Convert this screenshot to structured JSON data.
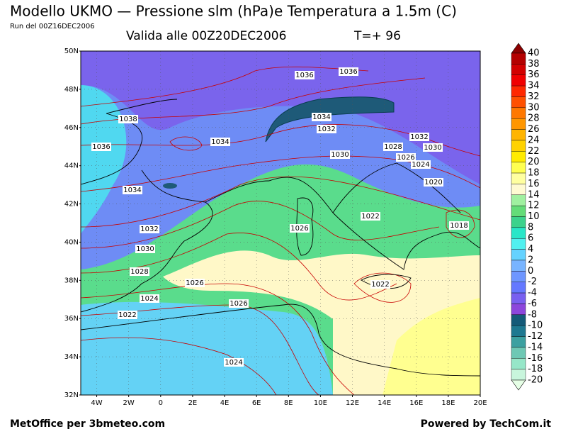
{
  "header": {
    "title": "Modello UKMO — Pressione slm (hPa)e Temperatura a 1.5m (C)",
    "run": "Run del 00Z16DEC2006",
    "valid": "Valida alle 00Z20DEC2006",
    "lead": "T=+ 96"
  },
  "axes": {
    "lat_labels": [
      "50N",
      "48N",
      "46N",
      "44N",
      "42N",
      "40N",
      "38N",
      "36N",
      "34N",
      "32N"
    ],
    "lon_labels": [
      "4W",
      "2W",
      "0",
      "2E",
      "4E",
      "6E",
      "8E",
      "10E",
      "12E",
      "14E",
      "16E",
      "18E",
      "20E"
    ]
  },
  "isobar_labels": [
    "1036",
    "1036",
    "1034",
    "1032",
    "1038",
    "1036",
    "1034",
    "1034",
    "1030",
    "1028",
    "1026",
    "1032",
    "1030",
    "1024",
    "1020",
    "1022",
    "1018",
    "1032",
    "1030",
    "1026",
    "1028",
    "1026",
    "1022",
    "1024",
    "1026",
    "1022",
    "1024"
  ],
  "colorbar": {
    "labels": [
      "40",
      "38",
      "36",
      "34",
      "32",
      "30",
      "28",
      "26",
      "24",
      "22",
      "20",
      "18",
      "16",
      "14",
      "12",
      "10",
      "8",
      "6",
      "4",
      "2",
      "0",
      "-2",
      "-4",
      "-6",
      "-8",
      "-10",
      "-12",
      "-14",
      "-16",
      "-18",
      "-20"
    ],
    "colors": [
      "#8c0000",
      "#b40000",
      "#d20000",
      "#f00000",
      "#ff2800",
      "#ff5000",
      "#ff7800",
      "#ff9600",
      "#ffb400",
      "#ffd200",
      "#ffeb00",
      "#ffff50",
      "#ffffa0",
      "#fffad2",
      "#a0f0a0",
      "#64dc78",
      "#3cd28c",
      "#28e6c8",
      "#50f0f0",
      "#64d2ff",
      "#78b4ff",
      "#6e96ff",
      "#6478ff",
      "#7860f0",
      "#8c46dc",
      "#145a78",
      "#1e7890",
      "#3ca0a0",
      "#6ec8b4",
      "#96e6c8",
      "#c8f5dc",
      "#e6ffe6"
    ]
  },
  "footer": {
    "left": "MetOffice per 3bmeteo.com",
    "right": "Powered by TechCom.it"
  }
}
